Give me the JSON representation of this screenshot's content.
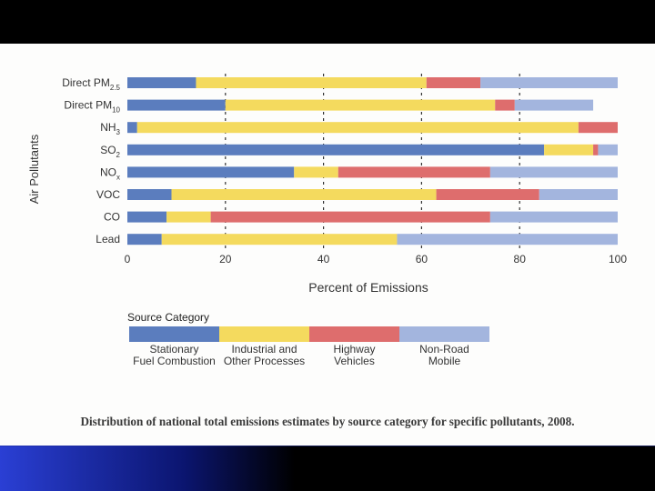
{
  "caption": "Distribution of national total emissions estimates by source category for specific pollutants, 2008.",
  "colors": {
    "stationary": "#5b7dbe",
    "industrial": "#f4da5e",
    "highway": "#de6d6d",
    "nonroad": "#a3b5de"
  },
  "chart_data": {
    "type": "bar",
    "orientation": "horizontal",
    "stacked": true,
    "ylabel": "Air Pollutants",
    "xlabel": "Percent of Emissions",
    "xlim": [
      0,
      100
    ],
    "xticks": [
      0,
      20,
      40,
      60,
      80,
      100
    ],
    "grid": "dashed vertical at 20, 40, 60, 80",
    "categories": [
      {
        "base": "Direct PM",
        "sub": "2.5"
      },
      {
        "base": "Direct PM",
        "sub": "10"
      },
      {
        "base": "NH",
        "sub": "3"
      },
      {
        "base": "SO",
        "sub": "2"
      },
      {
        "base": "NO",
        "sub": "x"
      },
      {
        "base": "VOC",
        "sub": ""
      },
      {
        "base": "CO",
        "sub": ""
      },
      {
        "base": "Lead",
        "sub": ""
      }
    ],
    "series": [
      {
        "name": "Stationary Fuel Combustion",
        "label_lines": [
          "Stationary",
          "Fuel Combustion"
        ],
        "color": "#5b7dbe",
        "values": [
          14,
          20,
          2,
          85,
          34,
          9,
          8,
          7
        ]
      },
      {
        "name": "Industrial and Other Processes",
        "label_lines": [
          "Industrial and",
          "Other Processes"
        ],
        "color": "#f4da5e",
        "values": [
          47,
          55,
          90,
          10,
          9,
          54,
          9,
          48
        ]
      },
      {
        "name": "Highway Vehicles",
        "label_lines": [
          "Highway",
          "Vehicles"
        ],
        "color": "#de6d6d",
        "values": [
          11,
          4,
          8,
          1,
          31,
          21,
          57,
          0
        ]
      },
      {
        "name": "Non-Road Mobile",
        "label_lines": [
          "Non-Road",
          "Mobile"
        ],
        "color": "#a3b5de",
        "values": [
          28,
          16,
          0,
          4,
          26,
          16,
          26,
          45
        ]
      }
    ],
    "legend": {
      "title": "Source Category",
      "placement": "bottom-left"
    }
  }
}
